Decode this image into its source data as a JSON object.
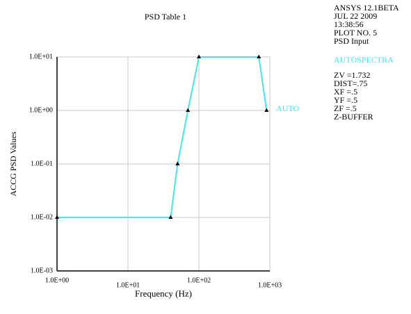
{
  "chart_data": {
    "type": "line",
    "title": "PSD Table  1",
    "x_label": "Frequency (Hz)",
    "y_label": "ACCG PSD Values",
    "x_scale": "log",
    "y_scale": "log",
    "grid": true,
    "xlim": [
      1,
      1000
    ],
    "ylim": [
      0.001,
      10
    ],
    "xticks": [
      {
        "value": 1,
        "label": "1.0E+00"
      },
      {
        "value": 10,
        "label": "1.0E+01"
      },
      {
        "value": 100,
        "label": "1.0E+02"
      },
      {
        "value": 1000,
        "label": "1.0E+03"
      }
    ],
    "yticks": [
      {
        "value": 0.001,
        "label": "1.0E-03"
      },
      {
        "value": 0.01,
        "label": "1.0E-02"
      },
      {
        "value": 0.1,
        "label": "1.0E-01"
      },
      {
        "value": 1,
        "label": "1.0E+00"
      },
      {
        "value": 10,
        "label": "1.0E+01"
      }
    ],
    "x": [
      1,
      40,
      50,
      70,
      100,
      700,
      900
    ],
    "series": [
      {
        "name": "AUTO",
        "color": "#40e8f0",
        "values": [
          0.01,
          0.01,
          0.1,
          1,
          10,
          10,
          1
        ]
      }
    ],
    "annotations": [
      "ANSYS 12.1BETA",
      "JUL 22 2009",
      "13:38:56",
      "PLOT NO.   5",
      "PSD Input"
    ],
    "plot_label": "AUTOSPECTRA",
    "view_settings": [
      "ZV  =1.732",
      "DIST=.75",
      "XF  =.5",
      "YF  =.5",
      "ZF  =.5",
      "Z-BUFFER"
    ]
  }
}
